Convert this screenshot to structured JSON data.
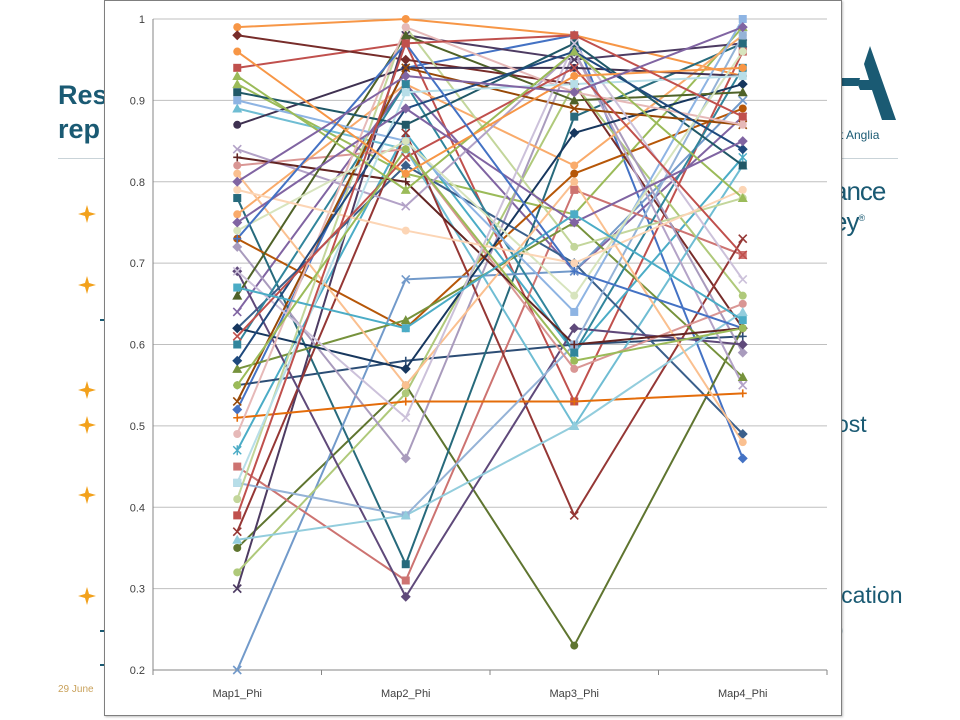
{
  "slide": {
    "title_lines": [
      "Res",
      "rep"
    ],
    "footer_date": "29 June",
    "body_fragments": [
      "ost",
      "ication",
      ")"
    ],
    "logo_text": "st Anglia",
    "brand_lines": [
      "ance",
      "ey"
    ],
    "brand_mark": "®",
    "accent_color": "#1a5a73",
    "bullet_color": "#f2a11c",
    "bullet_icon": "four-point-star-icon"
  },
  "chart_data": {
    "type": "line",
    "categories": [
      "Map1_Phi",
      "Map2_Phi",
      "Map3_Phi",
      "Map4_Phi"
    ],
    "ylim": [
      0.2,
      1
    ],
    "yticks": [
      "0.2",
      "0.3",
      "0.4",
      "0.5",
      "0.6",
      "0.7",
      "0.8",
      "0.9",
      "1"
    ],
    "grid": true,
    "legend": "none",
    "series": [
      {
        "color": "#4472c4",
        "marker": "diamond",
        "values": [
          0.52,
          0.94,
          0.98,
          0.46
        ]
      },
      {
        "color": "#c0504d",
        "marker": "square",
        "values": [
          0.94,
          0.97,
          0.53,
          0.96
        ]
      },
      {
        "color": "#9bbb59",
        "marker": "triangle",
        "values": [
          0.92,
          0.81,
          0.76,
          0.99
        ]
      },
      {
        "color": "#8064a2",
        "marker": "x",
        "values": [
          0.64,
          0.92,
          0.69,
          0.88
        ]
      },
      {
        "color": "#4bacc6",
        "marker": "star",
        "values": [
          0.47,
          0.86,
          0.59,
          0.83
        ]
      },
      {
        "color": "#f79646",
        "marker": "circle",
        "values": [
          0.99,
          1.0,
          0.98,
          0.93
        ]
      },
      {
        "color": "#2c4d75",
        "marker": "plus",
        "values": [
          0.55,
          0.58,
          0.6,
          0.61
        ]
      },
      {
        "color": "#772c2a",
        "marker": "diamond",
        "values": [
          0.98,
          0.95,
          0.92,
          0.62
        ]
      },
      {
        "color": "#5f7530",
        "marker": "circle",
        "values": [
          0.35,
          0.55,
          0.23,
          0.62
        ]
      },
      {
        "color": "#4d3b62",
        "marker": "x",
        "values": [
          0.3,
          0.98,
          0.95,
          0.97
        ]
      },
      {
        "color": "#276a7c",
        "marker": "square",
        "values": [
          0.78,
          0.33,
          0.88,
          0.97
        ]
      },
      {
        "color": "#b65708",
        "marker": "circle",
        "values": [
          0.73,
          0.62,
          0.81,
          0.89
        ]
      },
      {
        "color": "#729aca",
        "marker": "x",
        "values": [
          0.2,
          0.68,
          0.69,
          0.9
        ]
      },
      {
        "color": "#cd7371",
        "marker": "square",
        "values": [
          0.45,
          0.31,
          0.79,
          0.71
        ]
      },
      {
        "color": "#afc97a",
        "marker": "circle",
        "values": [
          0.32,
          0.54,
          0.92,
          0.66
        ]
      },
      {
        "color": "#a99bbd",
        "marker": "diamond",
        "values": [
          0.72,
          0.46,
          0.96,
          0.59
        ]
      },
      {
        "color": "#6fbdd3",
        "marker": "triangle",
        "values": [
          0.89,
          0.84,
          0.5,
          0.82
        ]
      },
      {
        "color": "#f9ab6b",
        "marker": "circle",
        "values": [
          0.76,
          0.92,
          0.82,
          0.98
        ]
      },
      {
        "color": "#3a5f8b",
        "marker": "diamond",
        "values": [
          0.62,
          0.82,
          0.7,
          0.49
        ]
      },
      {
        "color": "#953735",
        "marker": "x",
        "values": [
          0.37,
          0.86,
          0.39,
          0.73
        ]
      },
      {
        "color": "#76923c",
        "marker": "triangle",
        "values": [
          0.57,
          0.63,
          0.75,
          0.56
        ]
      },
      {
        "color": "#5f497a",
        "marker": "diamond",
        "values": [
          0.69,
          0.29,
          0.62,
          0.6
        ]
      },
      {
        "color": "#31859c",
        "marker": "square",
        "values": [
          0.6,
          0.92,
          0.59,
          0.94
        ]
      },
      {
        "color": "#e46c0a",
        "marker": "plus",
        "values": [
          0.51,
          0.53,
          0.53,
          0.54
        ]
      },
      {
        "color": "#95b3d7",
        "marker": "square",
        "values": [
          0.43,
          0.39,
          0.6,
          0.98
        ]
      },
      {
        "color": "#d99694",
        "marker": "circle",
        "values": [
          0.82,
          0.84,
          0.57,
          0.65
        ]
      },
      {
        "color": "#c3d69b",
        "marker": "circle",
        "values": [
          0.41,
          0.99,
          0.72,
          0.78
        ]
      },
      {
        "color": "#b3a2c7",
        "marker": "x",
        "values": [
          0.84,
          0.77,
          0.96,
          0.55
        ]
      },
      {
        "color": "#93cddd",
        "marker": "triangle",
        "values": [
          0.36,
          0.39,
          0.5,
          0.64
        ]
      },
      {
        "color": "#fac090",
        "marker": "circle",
        "values": [
          0.81,
          0.55,
          0.8,
          0.48
        ]
      },
      {
        "color": "#17375e",
        "marker": "diamond",
        "values": [
          0.62,
          0.57,
          0.86,
          0.92
        ]
      },
      {
        "color": "#632523",
        "marker": "plus",
        "values": [
          0.83,
          0.8,
          0.6,
          0.62
        ]
      },
      {
        "color": "#4f6228",
        "marker": "triangle",
        "values": [
          0.66,
          0.98,
          0.9,
          0.91
        ]
      },
      {
        "color": "#3f3151",
        "marker": "circle",
        "values": [
          0.87,
          0.94,
          0.94,
          0.93
        ]
      },
      {
        "color": "#205867",
        "marker": "square",
        "values": [
          0.91,
          0.87,
          0.97,
          0.82
        ]
      },
      {
        "color": "#974806",
        "marker": "x",
        "values": [
          0.53,
          0.94,
          0.89,
          0.87
        ]
      },
      {
        "color": "#8eb4e3",
        "marker": "square",
        "values": [
          0.9,
          0.85,
          0.64,
          1.0
        ]
      },
      {
        "color": "#e6b9b8",
        "marker": "circle",
        "values": [
          0.49,
          0.99,
          0.91,
          0.87
        ]
      },
      {
        "color": "#d7e4bd",
        "marker": "circle",
        "values": [
          0.74,
          0.85,
          0.66,
          0.96
        ]
      },
      {
        "color": "#ccc1da",
        "marker": "x",
        "values": [
          0.69,
          0.51,
          0.97,
          0.68
        ]
      },
      {
        "color": "#b7dee8",
        "marker": "square",
        "values": [
          0.43,
          0.91,
          0.92,
          0.93
        ]
      },
      {
        "color": "#fcd5b5",
        "marker": "circle",
        "values": [
          0.79,
          0.74,
          0.7,
          0.79
        ]
      },
      {
        "color": "#1f497d",
        "marker": "diamond",
        "values": [
          0.58,
          0.89,
          0.96,
          0.84
        ]
      },
      {
        "color": "#c0504d",
        "marker": "x",
        "values": [
          0.61,
          0.83,
          0.94,
          0.71
        ]
      },
      {
        "color": "#9bbb59",
        "marker": "triangle",
        "values": [
          0.93,
          0.79,
          0.96,
          0.78
        ]
      },
      {
        "color": "#8064a2",
        "marker": "diamond",
        "values": [
          0.75,
          0.89,
          0.75,
          0.85
        ]
      },
      {
        "color": "#4bacc6",
        "marker": "square",
        "values": [
          0.67,
          0.62,
          0.76,
          0.63
        ]
      },
      {
        "color": "#f79646",
        "marker": "circle",
        "values": [
          0.96,
          0.81,
          0.93,
          0.94
        ]
      },
      {
        "color": "#4472c4",
        "marker": "plus",
        "values": [
          0.73,
          0.97,
          0.69,
          0.62
        ]
      },
      {
        "color": "#c0504d",
        "marker": "square",
        "values": [
          0.39,
          0.97,
          0.98,
          0.88
        ]
      },
      {
        "color": "#9bbb59",
        "marker": "circle",
        "values": [
          0.55,
          0.84,
          0.58,
          0.62
        ]
      },
      {
        "color": "#8064a2",
        "marker": "diamond",
        "values": [
          0.8,
          0.93,
          0.91,
          0.99
        ]
      }
    ]
  }
}
